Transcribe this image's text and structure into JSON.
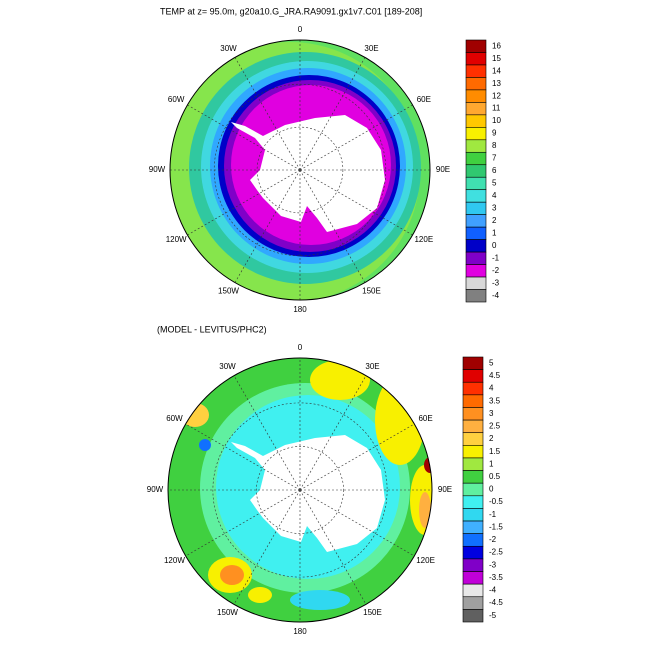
{
  "title": "TEMP at z=  95.0m, g20a10.G_JRA.RA9091.gx1v7.C01 [189-208]",
  "panels": [
    {
      "lon_labels": [
        "0",
        "30E",
        "60E",
        "90E",
        "120E",
        "150E",
        "180",
        "150W",
        "120W",
        "90W",
        "60W",
        "30W"
      ],
      "colorbar": {
        "labels": [
          16,
          15,
          14,
          13,
          12,
          11,
          10,
          9,
          8,
          7,
          6,
          5,
          4,
          3,
          2,
          1,
          0,
          -1,
          -2,
          -3,
          -4
        ],
        "colors": [
          "#a00000",
          "#e00000",
          "#ff3000",
          "#ff6a00",
          "#ff8c00",
          "#ffa830",
          "#ffc800",
          "#f8f000",
          "#a0e840",
          "#40d040",
          "#30c870",
          "#40e0b0",
          "#40e0e0",
          "#30c8f0",
          "#40a0ff",
          "#1060ff",
          "#0000c8",
          "#8000c8",
          "#e000e0",
          "#d8d8d8",
          "#808080"
        ]
      }
    },
    {
      "subtitle": "(MODEL - LEVITUS/PHC2)",
      "lon_labels": [
        "0",
        "30E",
        "60E",
        "90E",
        "120E",
        "150E",
        "180",
        "150W",
        "120W",
        "90W",
        "60W",
        "30W"
      ],
      "colorbar": {
        "labels": [
          5,
          4.5,
          4,
          3.5,
          3,
          2.5,
          2,
          1.5,
          1,
          0.5,
          0,
          -0.5,
          -1,
          -1.5,
          -2,
          -2.5,
          -3,
          -3.5,
          -4,
          -4.5,
          -5
        ],
        "colors": [
          "#a00000",
          "#e00000",
          "#ff3000",
          "#ff6a00",
          "#ff9020",
          "#ffb040",
          "#ffd040",
          "#f8f000",
          "#a0e840",
          "#40d040",
          "#60f0a0",
          "#40f0f0",
          "#30d8f0",
          "#40b0ff",
          "#1070ff",
          "#0000e0",
          "#8000c8",
          "#c000d8",
          "#e8e8e8",
          "#a0a0a0",
          "#606060"
        ]
      }
    }
  ]
}
